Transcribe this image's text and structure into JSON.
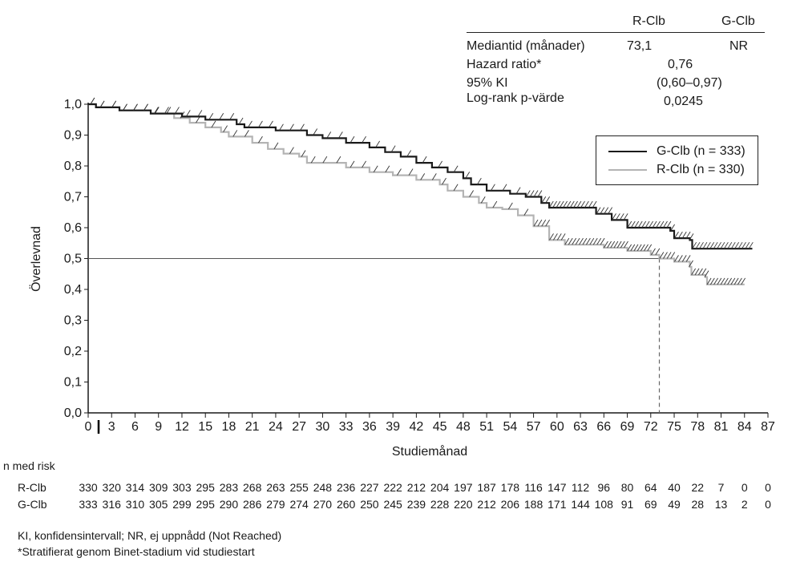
{
  "stats_table": {
    "col_headers": [
      "R-Clb",
      "G-Clb"
    ],
    "rows": [
      {
        "label": "Mediantid (månader)",
        "r_clb": "73,1",
        "g_clb": "NR"
      },
      {
        "label": "Hazard ratio*",
        "combined": "0,76"
      },
      {
        "label": "95% KI",
        "combined": "(0,60–0,97)"
      },
      {
        "label": "Log-rank p-värde",
        "combined": "0,0245"
      }
    ]
  },
  "risk_table": {
    "title": "n med risk",
    "rows": [
      {
        "label": "R-Clb",
        "values": [
          "330",
          "320",
          "314",
          "309",
          "303",
          "295",
          "283",
          "268",
          "263",
          "255",
          "248",
          "236",
          "227",
          "222",
          "212",
          "204",
          "197",
          "187",
          "178",
          "116",
          "147",
          "112",
          "96",
          "80",
          "64",
          "40",
          "22",
          "7",
          "0",
          "0"
        ]
      },
      {
        "label": "G-Clb",
        "values": [
          "333",
          "316",
          "310",
          "305",
          "299",
          "295",
          "290",
          "286",
          "279",
          "274",
          "270",
          "260",
          "250",
          "245",
          "239",
          "228",
          "220",
          "212",
          "206",
          "188",
          "171",
          "144",
          "108",
          "91",
          "69",
          "49",
          "28",
          "13",
          "2",
          "0"
        ]
      }
    ]
  },
  "footnotes": [
    "KI, konfidensintervall; NR, ej uppnådd (Not Reached)",
    "*Stratifierat genom Binet-stadium vid studiestart"
  ],
  "chart_data": {
    "type": "line",
    "subtype": "kaplan-meier step",
    "title": "",
    "xlabel": "Studiemånad",
    "ylabel": "Överlevnad",
    "xlim": [
      0,
      87
    ],
    "ylim": [
      0,
      1.0
    ],
    "x_ticks": [
      0,
      3,
      6,
      9,
      12,
      15,
      18,
      21,
      24,
      27,
      30,
      33,
      36,
      39,
      42,
      45,
      48,
      51,
      54,
      57,
      60,
      63,
      66,
      69,
      72,
      75,
      78,
      81,
      84,
      87
    ],
    "y_ticks": [
      0,
      0.1,
      0.2,
      0.3,
      0.4,
      0.5,
      0.6,
      0.7,
      0.8,
      0.9,
      1.0
    ],
    "y_tick_labels": [
      "0,0",
      "0,1",
      "0,2",
      "0,3",
      "0,4",
      "0,5",
      "0,6",
      "0,7",
      "0,8",
      "0,9",
      "1,0"
    ],
    "grid": false,
    "legend_position": "top-right",
    "reference_line": {
      "y": 0.5,
      "label": "median"
    },
    "median_marker": {
      "x": 73.1,
      "series": "R-Clb"
    },
    "series": [
      {
        "name": "G-Clb (n = 333)",
        "color": "#1a1a1a",
        "points": [
          [
            0,
            1.0
          ],
          [
            1,
            0.99
          ],
          [
            4,
            0.98
          ],
          [
            8,
            0.97
          ],
          [
            12,
            0.96
          ],
          [
            15,
            0.95
          ],
          [
            19,
            0.935
          ],
          [
            20,
            0.925
          ],
          [
            24,
            0.915
          ],
          [
            28,
            0.9
          ],
          [
            30,
            0.89
          ],
          [
            33,
            0.875
          ],
          [
            36,
            0.86
          ],
          [
            38,
            0.845
          ],
          [
            40,
            0.83
          ],
          [
            42,
            0.81
          ],
          [
            44,
            0.795
          ],
          [
            46,
            0.78
          ],
          [
            48,
            0.76
          ],
          [
            49,
            0.74
          ],
          [
            51,
            0.72
          ],
          [
            54,
            0.71
          ],
          [
            56,
            0.7
          ],
          [
            58,
            0.68
          ],
          [
            59,
            0.665
          ],
          [
            63,
            0.665
          ],
          [
            65,
            0.645
          ],
          [
            67,
            0.625
          ],
          [
            69,
            0.6
          ],
          [
            74.5,
            0.59
          ],
          [
            75,
            0.566
          ],
          [
            77,
            0.56
          ],
          [
            77.3,
            0.532
          ],
          [
            85,
            0.532
          ]
        ]
      },
      {
        "name": "R-Clb (n = 330)",
        "color": "#b4b4b4",
        "points": [
          [
            0,
            1.0
          ],
          [
            1,
            0.99
          ],
          [
            4,
            0.98
          ],
          [
            8,
            0.97
          ],
          [
            11,
            0.955
          ],
          [
            13,
            0.94
          ],
          [
            15,
            0.925
          ],
          [
            17,
            0.91
          ],
          [
            18,
            0.895
          ],
          [
            21,
            0.875
          ],
          [
            23,
            0.855
          ],
          [
            25,
            0.84
          ],
          [
            27,
            0.83
          ],
          [
            28,
            0.81
          ],
          [
            31,
            0.81
          ],
          [
            33,
            0.795
          ],
          [
            36,
            0.78
          ],
          [
            39,
            0.77
          ],
          [
            42,
            0.755
          ],
          [
            45,
            0.74
          ],
          [
            46,
            0.72
          ],
          [
            48,
            0.7
          ],
          [
            50,
            0.68
          ],
          [
            51,
            0.665
          ],
          [
            53,
            0.66
          ],
          [
            55,
            0.64
          ],
          [
            57,
            0.605
          ],
          [
            59,
            0.56
          ],
          [
            61,
            0.545
          ],
          [
            66,
            0.535
          ],
          [
            69,
            0.525
          ],
          [
            72,
            0.512
          ],
          [
            73.1,
            0.5
          ],
          [
            75,
            0.49
          ],
          [
            77,
            0.473
          ],
          [
            77.2,
            0.447
          ],
          [
            79,
            0.44
          ],
          [
            79.2,
            0.416
          ],
          [
            84,
            0.416
          ]
        ]
      }
    ],
    "censor_marks": "tick marks along both curves"
  }
}
